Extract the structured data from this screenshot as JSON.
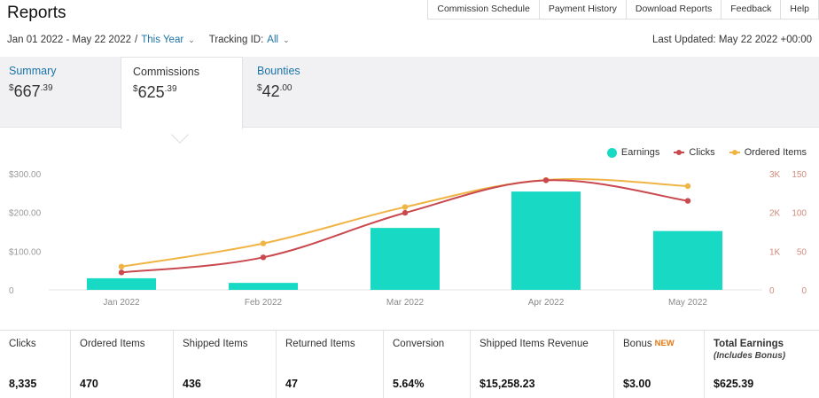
{
  "header": {
    "title": "Reports"
  },
  "top_nav": [
    "Commission Schedule",
    "Payment History",
    "Download Reports",
    "Feedback",
    "Help"
  ],
  "filters": {
    "date_range": "Jan 01 2022 - May 22 2022",
    "separator": "/",
    "period": "This Year",
    "tracking_label": "Tracking ID:",
    "tracking_value": "All",
    "last_updated": "Last Updated: May 22 2022 +00:00"
  },
  "tabs": [
    {
      "label": "Summary",
      "currency": "$",
      "whole": "667",
      "cents": ".39"
    },
    {
      "label": "Commissions",
      "currency": "$",
      "whole": "625",
      "cents": ".39"
    },
    {
      "label": "Bounties",
      "currency": "$",
      "whole": "42",
      "cents": ".00"
    }
  ],
  "legend": {
    "earnings": "Earnings",
    "clicks": "Clicks",
    "ordered": "Ordered Items"
  },
  "colors": {
    "earnings": "#18d9c3",
    "clicks": "#c9494f",
    "ordered": "#f0b445",
    "link": "#1a73a8",
    "new_badge": "#e47911"
  },
  "chart_data": {
    "type": "bar",
    "categories": [
      "Jan 2022",
      "Feb 2022",
      "Mar 2022",
      "Apr 2022",
      "May 2022"
    ],
    "series": [
      {
        "name": "Earnings",
        "type": "bar",
        "axis": "left",
        "values": [
          30,
          18,
          160,
          254,
          152
        ]
      },
      {
        "name": "Clicks",
        "type": "line",
        "axis": "right-1",
        "values": [
          450,
          840,
          1990,
          2830,
          2300
        ]
      },
      {
        "name": "Ordered Items",
        "type": "line",
        "axis": "right-2",
        "values": [
          30,
          60,
          107,
          142,
          134
        ]
      }
    ],
    "y_left": {
      "ticks": [
        "0",
        "$100.00",
        "$200.00",
        "$300.00"
      ],
      "max": 300
    },
    "y_right_1": {
      "ticks": [
        "0",
        "1K",
        "2K",
        "3K"
      ],
      "max": 3000
    },
    "y_right_2": {
      "ticks": [
        "0",
        "50",
        "100",
        "150"
      ],
      "max": 150
    },
    "legend_position": "top-right",
    "grid": false
  },
  "stats": [
    {
      "label": "Clicks",
      "value": "8,335"
    },
    {
      "label": "Ordered Items",
      "value": "470"
    },
    {
      "label": "Shipped Items",
      "value": "436"
    },
    {
      "label": "Returned Items",
      "value": "47"
    },
    {
      "label": "Conversion",
      "value": "5.64%"
    },
    {
      "label": "Shipped Items Revenue",
      "value": "$15,258.23"
    },
    {
      "label": "Bonus",
      "badge": "NEW",
      "value": "$3.00"
    },
    {
      "label": "Total Earnings",
      "sub": "(Includes Bonus)",
      "value": "$625.39"
    }
  ]
}
